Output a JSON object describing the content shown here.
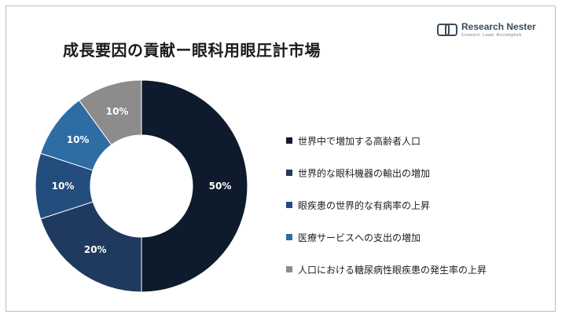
{
  "title": "成長要因の貢献ー眼科用眼圧計市場",
  "logo": {
    "name": "Research Nester",
    "tagline": "Connect. Lead. Accomplish",
    "icon": "research-nester-logo-icon"
  },
  "chart_data": {
    "type": "pie",
    "donut": true,
    "categories": [
      "世界中で増加する高齢者人口",
      "世界的な眼科機器の輸出の増加",
      "眼疾患の世界的な有病率の上昇",
      "医療サービスへの支出の増加",
      "人口における糖尿病性眼疾患の発生率の上昇"
    ],
    "values": [
      50,
      20,
      10,
      10,
      10
    ],
    "value_labels": [
      "50%",
      "20%",
      "10%",
      "10%",
      "10%"
    ],
    "colors": [
      "#0e1b2c",
      "#1f3a5e",
      "#234d7c",
      "#2e6ca4",
      "#8c8c8c"
    ],
    "legend_position": "right"
  }
}
